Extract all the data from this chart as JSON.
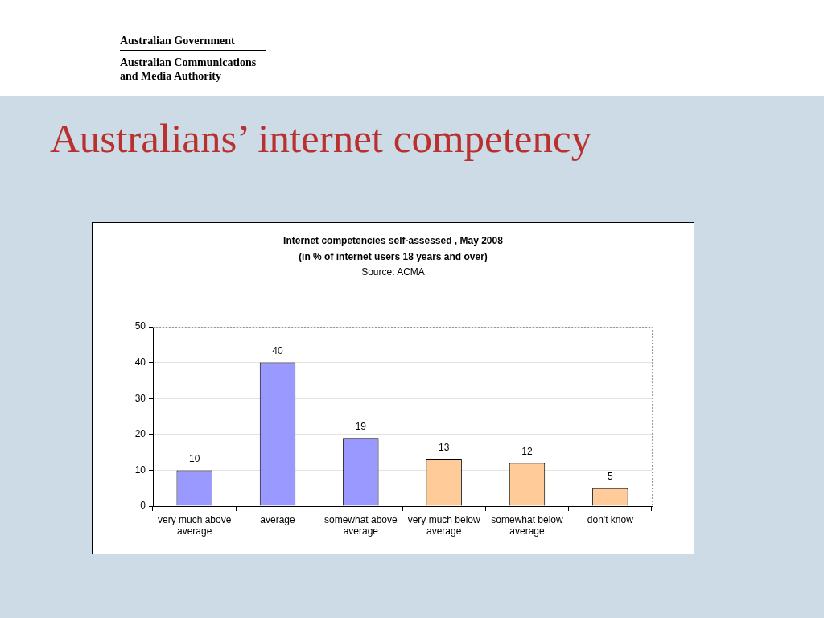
{
  "chart_data": {
    "type": "bar",
    "title": "Australians’ internet competency",
    "subtitle": "Internet competencies self-assessed , May 2008",
    "annotations": [
      "(in % of internet users 18 years and over)",
      "Source: ACMA",
      "Australian Government",
      "Australian Communications and Media Authority"
    ],
    "categories": [
      "very much above average",
      "average",
      "somewhat above average",
      "very much below average",
      "somewhat below average",
      "don't know"
    ],
    "values": [
      10,
      40,
      19,
      13,
      12,
      5
    ],
    "colors": [
      "#9999ff",
      "#9999ff",
      "#9999ff",
      "#ffcc99",
      "#ffcc99",
      "#ffcc99"
    ],
    "ylim": [
      0,
      50
    ],
    "yticks": [
      0,
      10,
      20,
      30,
      40,
      50
    ],
    "grid": "y",
    "data_labels": true
  }
}
